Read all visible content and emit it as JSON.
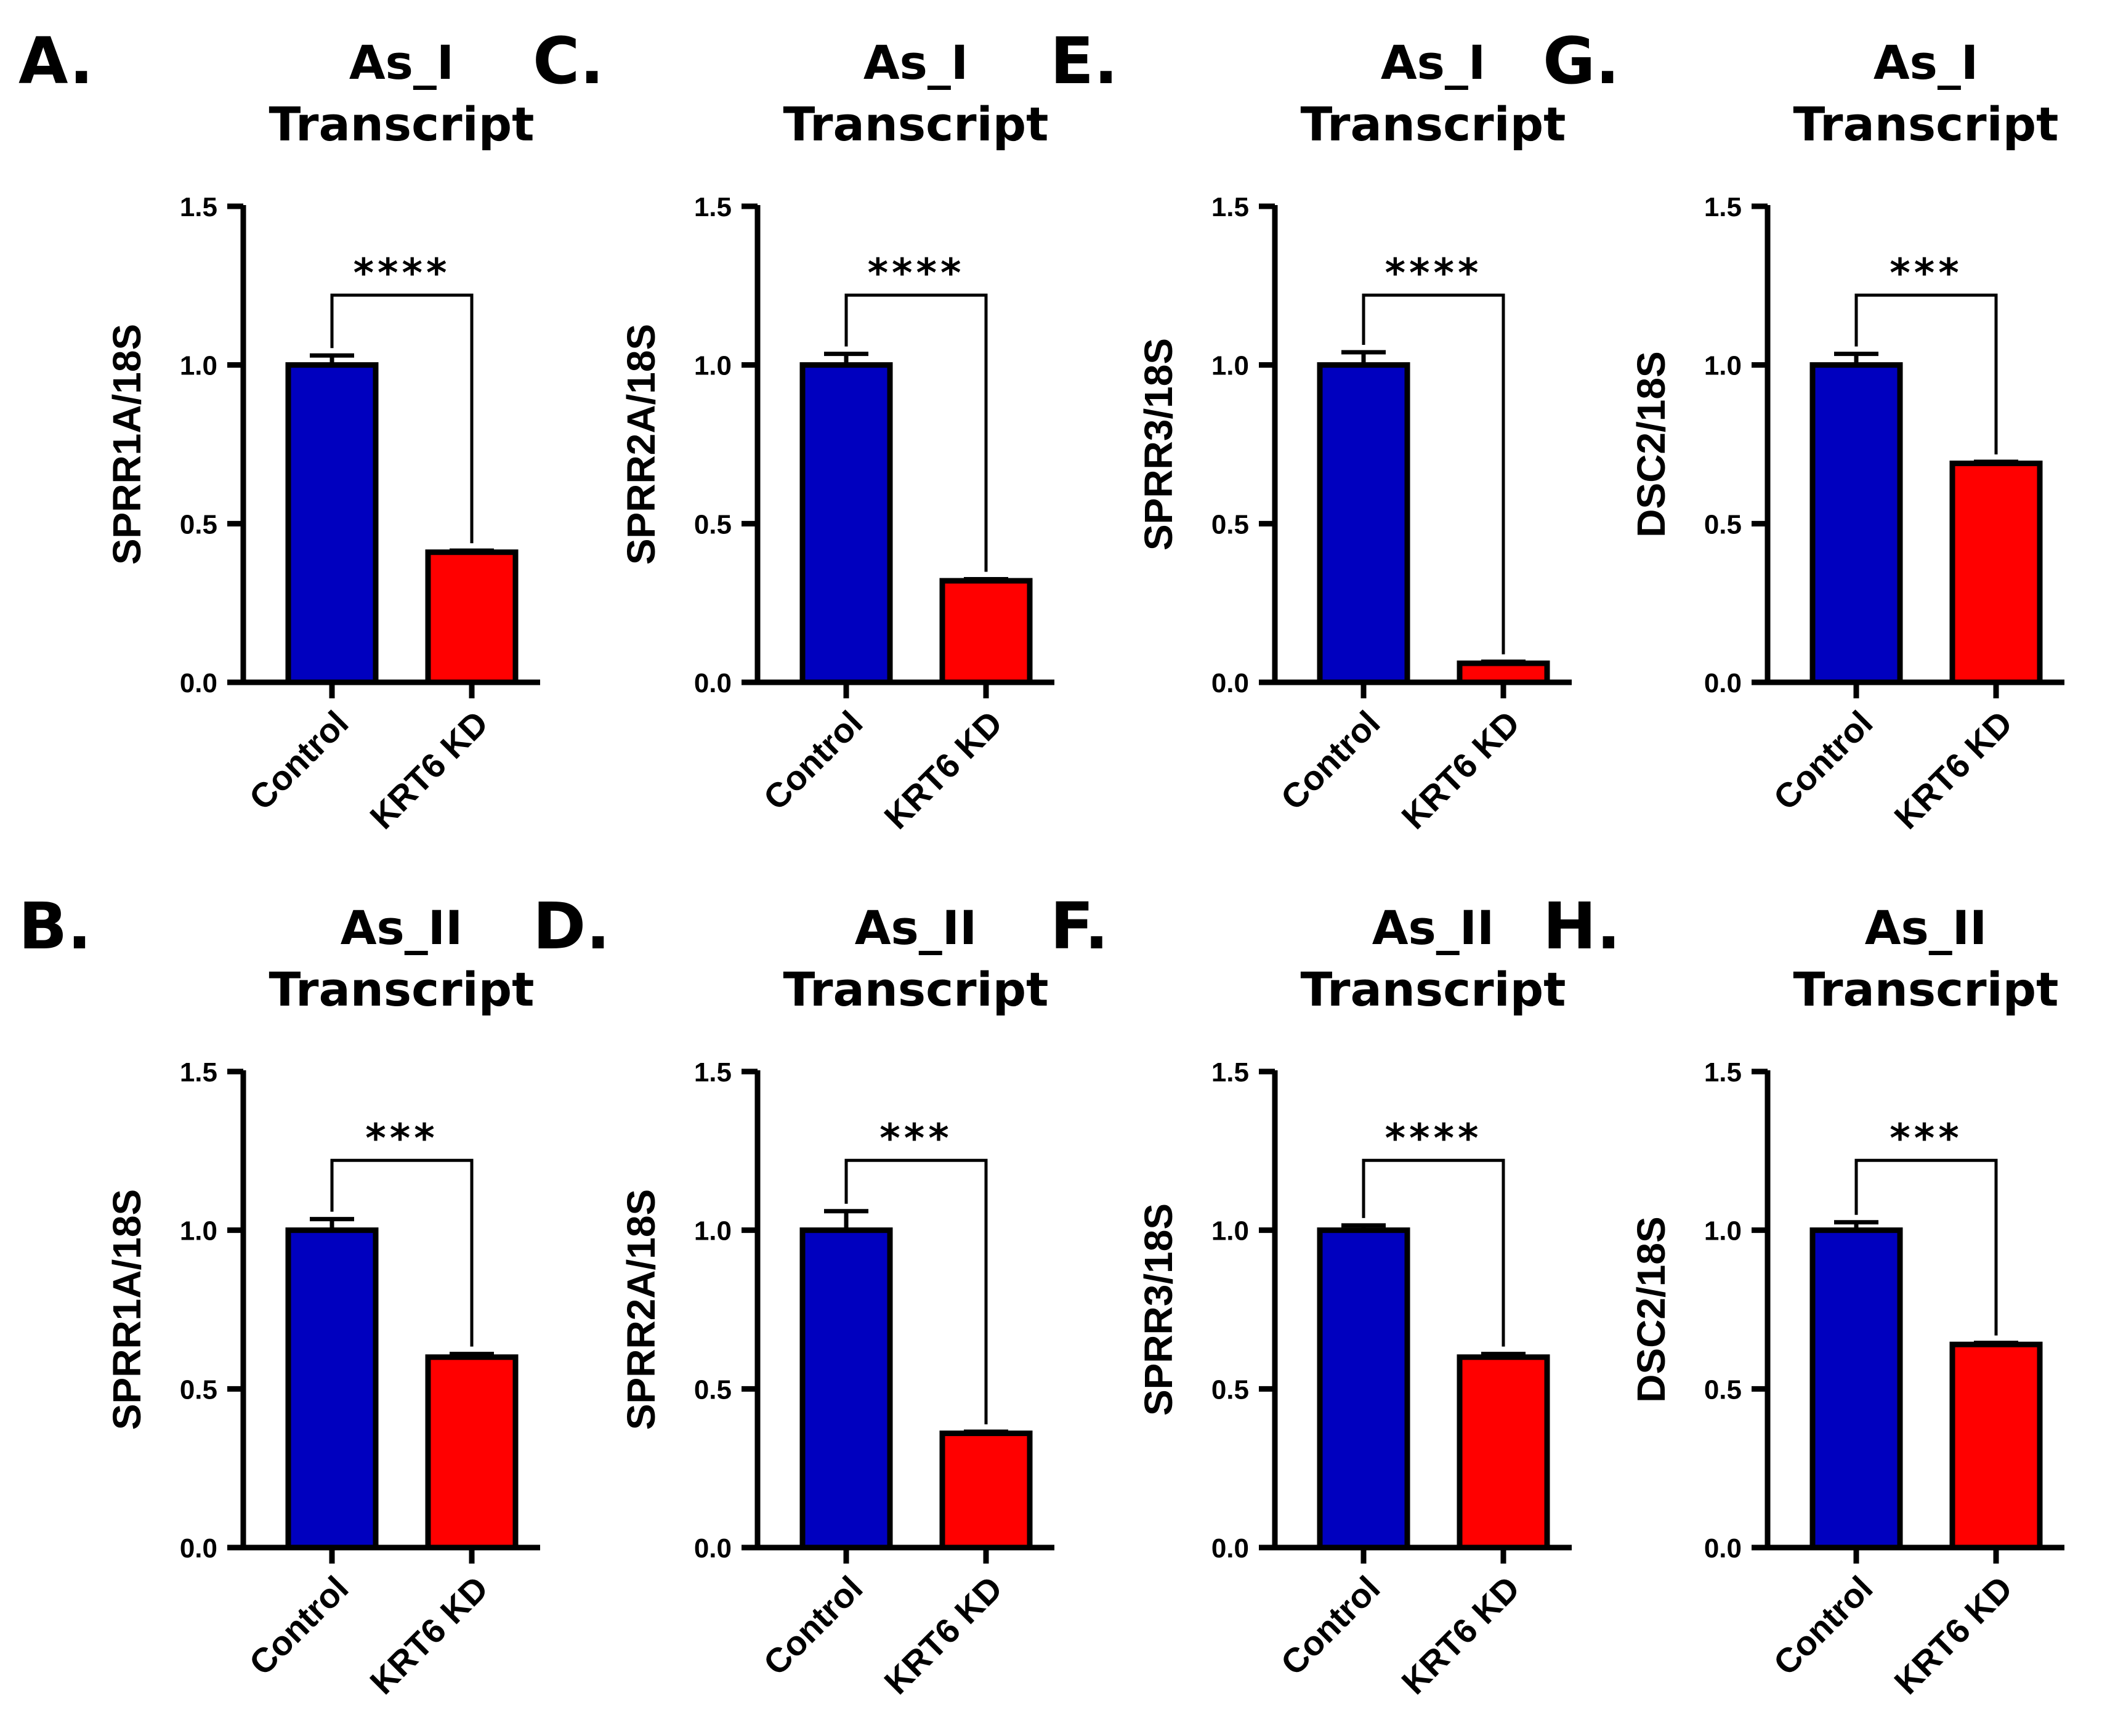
{
  "colors": {
    "control": "#0000BF",
    "kd": "#FF0000",
    "axis": "#000000"
  },
  "chart_data": [
    {
      "panel": "A.",
      "type": "bar",
      "title_line1": "As_I",
      "title_line2": "Transcript",
      "ylabel": "SPRR1A/18S",
      "categories": [
        "Control",
        "KRT6 KD"
      ],
      "values": [
        1.0,
        0.41
      ],
      "errors": [
        0.03,
        0.005
      ],
      "ylim": [
        0,
        1.5
      ],
      "yticks": [
        "0.0",
        "0.5",
        "1.0",
        "1.5"
      ],
      "significance": "****"
    },
    {
      "panel": "C.",
      "type": "bar",
      "title_line1": "As_I",
      "title_line2": "Transcript",
      "ylabel": "SPRR2A/18S",
      "categories": [
        "Control",
        "KRT6 KD"
      ],
      "values": [
        1.0,
        0.32
      ],
      "errors": [
        0.035,
        0.005
      ],
      "ylim": [
        0,
        1.5
      ],
      "yticks": [
        "0.0",
        "0.5",
        "1.0",
        "1.5"
      ],
      "significance": "****"
    },
    {
      "panel": "E.",
      "type": "bar",
      "title_line1": "As_I",
      "title_line2": "Transcript",
      "ylabel": "SPRR3/18S",
      "categories": [
        "Control",
        "KRT6 KD"
      ],
      "values": [
        1.0,
        0.06
      ],
      "errors": [
        0.04,
        0.005
      ],
      "ylim": [
        0,
        1.5
      ],
      "yticks": [
        "0.0",
        "0.5",
        "1.0",
        "1.5"
      ],
      "significance": "****"
    },
    {
      "panel": "G.",
      "type": "bar",
      "title_line1": "As_I",
      "title_line2": "Transcript",
      "ylabel": "DSC2/18S",
      "categories": [
        "Control",
        "KRT6 KD"
      ],
      "values": [
        1.0,
        0.69
      ],
      "errors": [
        0.035,
        0.005
      ],
      "ylim": [
        0,
        1.5
      ],
      "yticks": [
        "0.0",
        "0.5",
        "1.0",
        "1.5"
      ],
      "significance": "***"
    },
    {
      "panel": "B.",
      "type": "bar",
      "title_line1": "As_II",
      "title_line2": "Transcript",
      "ylabel": "SPRR1A/18S",
      "categories": [
        "Control",
        "KRT6 KD"
      ],
      "values": [
        1.0,
        0.6
      ],
      "errors": [
        0.035,
        0.01
      ],
      "ylim": [
        0,
        1.5
      ],
      "yticks": [
        "0.0",
        "0.5",
        "1.0",
        "1.5"
      ],
      "significance": "***"
    },
    {
      "panel": "D.",
      "type": "bar",
      "title_line1": "As_II",
      "title_line2": "Transcript",
      "ylabel": "SPRR2A/18S",
      "categories": [
        "Control",
        "KRT6 KD"
      ],
      "values": [
        1.0,
        0.36
      ],
      "errors": [
        0.06,
        0.005
      ],
      "ylim": [
        0,
        1.5
      ],
      "yticks": [
        "0.0",
        "0.5",
        "1.0",
        "1.5"
      ],
      "significance": "***"
    },
    {
      "panel": "F.",
      "type": "bar",
      "title_line1": "As_II",
      "title_line2": "Transcript",
      "ylabel": "SPRR3/18S",
      "categories": [
        "Control",
        "KRT6 KD"
      ],
      "values": [
        1.0,
        0.6
      ],
      "errors": [
        0.015,
        0.01
      ],
      "ylim": [
        0,
        1.5
      ],
      "yticks": [
        "0.0",
        "0.5",
        "1.0",
        "1.5"
      ],
      "significance": "****"
    },
    {
      "panel": "H.",
      "type": "bar",
      "title_line1": "As_II",
      "title_line2": "Transcript",
      "ylabel": "DSC2/18S",
      "categories": [
        "Control",
        "KRT6 KD"
      ],
      "values": [
        1.0,
        0.64
      ],
      "errors": [
        0.025,
        0.005
      ],
      "ylim": [
        0,
        1.5
      ],
      "yticks": [
        "0.0",
        "0.5",
        "1.0",
        "1.5"
      ],
      "significance": "***"
    }
  ]
}
